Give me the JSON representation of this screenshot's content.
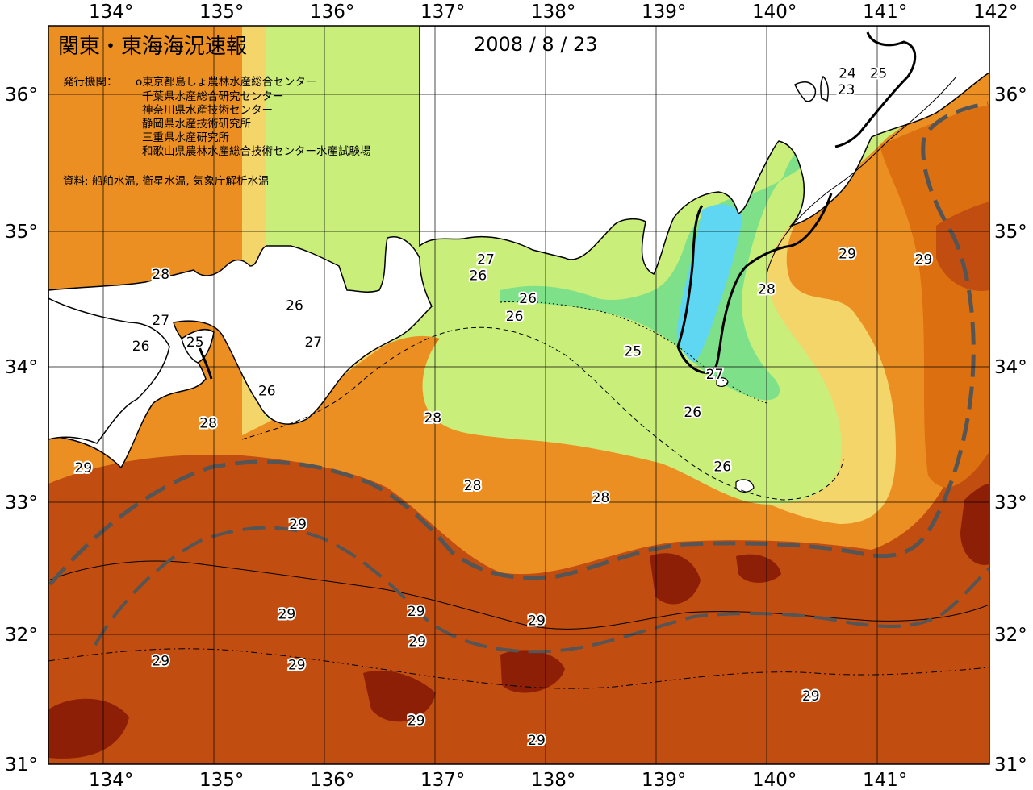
{
  "header": {
    "title": "関東・東海海況速報",
    "date": "2008 / 8 / 23"
  },
  "publisher": {
    "label": "発行機関：",
    "orgs": [
      "o東京都島しょ農林水産総合センター",
      "千葉県水産総合研究センター",
      "神奈川県水産技術センター",
      "静岡県水産技術研究所",
      "三重県水産研究所",
      "和歌山県農林水産総合技術センター水産試験場"
    ]
  },
  "source": "資料: 船舶水温, 衛星水温, 気象庁解析水温",
  "axes": {
    "lon_labels": [
      "134°",
      "135°",
      "136°",
      "137°",
      "138°",
      "139°",
      "140°",
      "141°",
      "142°"
    ],
    "lat_labels": [
      "36°",
      "35°",
      "34°",
      "33°",
      "32°",
      "31°"
    ]
  },
  "colors": {
    "t23": "#2ea8f0",
    "t24": "#5fd6f2",
    "t25": "#7fe08a",
    "t26": "#c9ee7a",
    "t27": "#f4d56a",
    "t28": "#ec8f22",
    "t28b": "#dc6f10",
    "t29": "#c24d10",
    "t29b": "#8c1f06",
    "land": "#ffffff",
    "kuroshio": "#555555"
  },
  "isotherm_labels": [
    {
      "text": "28",
      "lon": 134.52,
      "lat": 34.65
    },
    {
      "text": "27",
      "lon": 134.52,
      "lat": 34.31
    },
    {
      "text": "26",
      "lon": 134.34,
      "lat": 34.12
    },
    {
      "text": "25",
      "lon": 134.83,
      "lat": 34.15
    },
    {
      "text": "28",
      "lon": 134.95,
      "lat": 33.55
    },
    {
      "text": "29",
      "lon": 133.82,
      "lat": 33.22
    },
    {
      "text": "26",
      "lon": 135.73,
      "lat": 34.42
    },
    {
      "text": "27",
      "lon": 135.9,
      "lat": 34.15
    },
    {
      "text": "26",
      "lon": 135.48,
      "lat": 33.79
    },
    {
      "text": "28",
      "lon": 136.98,
      "lat": 33.59
    },
    {
      "text": "27",
      "lon": 137.46,
      "lat": 34.76
    },
    {
      "text": "26",
      "lon": 137.39,
      "lat": 34.64
    },
    {
      "text": "26",
      "lon": 137.84,
      "lat": 34.47
    },
    {
      "text": "26",
      "lon": 137.72,
      "lat": 34.34
    },
    {
      "text": "25",
      "lon": 138.79,
      "lat": 34.08
    },
    {
      "text": "27",
      "lon": 139.53,
      "lat": 33.91
    },
    {
      "text": "26",
      "lon": 139.33,
      "lat": 33.63
    },
    {
      "text": "26",
      "lon": 139.6,
      "lat": 33.23
    },
    {
      "text": "28",
      "lon": 137.34,
      "lat": 33.09
    },
    {
      "text": "28",
      "lon": 138.5,
      "lat": 33.0
    },
    {
      "text": "29",
      "lon": 135.76,
      "lat": 32.8
    },
    {
      "text": "29",
      "lon": 135.66,
      "lat": 32.12
    },
    {
      "text": "29",
      "lon": 136.83,
      "lat": 32.14
    },
    {
      "text": "29",
      "lon": 136.84,
      "lat": 31.91
    },
    {
      "text": "29",
      "lon": 137.92,
      "lat": 32.07
    },
    {
      "text": "29",
      "lon": 134.52,
      "lat": 31.76
    },
    {
      "text": "29",
      "lon": 135.75,
      "lat": 31.73
    },
    {
      "text": "29",
      "lon": 136.83,
      "lat": 31.3
    },
    {
      "text": "29",
      "lon": 137.92,
      "lat": 31.15
    },
    {
      "text": "29",
      "lon": 140.4,
      "lat": 31.49
    },
    {
      "text": "29",
      "lon": 140.73,
      "lat": 34.8
    },
    {
      "text": "28",
      "lon": 140.0,
      "lat": 34.54
    },
    {
      "text": "29",
      "lon": 141.42,
      "lat": 34.76
    },
    {
      "text": "24",
      "lon": 140.73,
      "lat": 36.12
    },
    {
      "text": "25",
      "lon": 141.01,
      "lat": 36.12
    },
    {
      "text": "23",
      "lon": 140.72,
      "lat": 36.0
    }
  ]
}
